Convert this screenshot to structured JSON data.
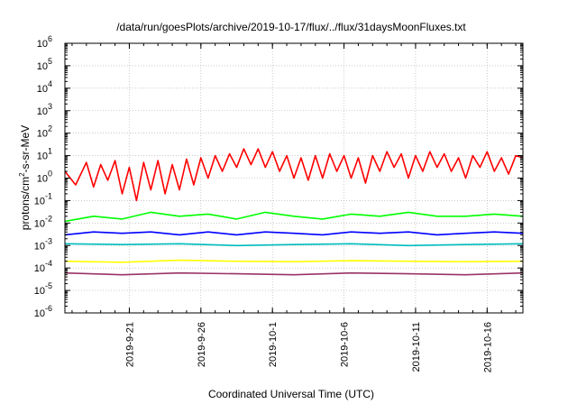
{
  "chart_data": {
    "type": "line",
    "title": "/data/run/goesPlots/archive/2019-10-17/flux/../flux/31daysMoonFluxes.txt",
    "xlabel": "Coordinated Universal Time (UTC)",
    "ylabel_parts": {
      "base": "protons/cm",
      "sup": "2",
      "rest": "-s-sr-MeV"
    },
    "yscale": "log",
    "ylim": [
      1e-06,
      1000000.0
    ],
    "xlim": [
      "2019-09-16T12:00",
      "2019-10-18T12:00"
    ],
    "grid": true,
    "x_ticks": [
      {
        "date": "2019-09-21",
        "label": "2019-9-21"
      },
      {
        "date": "2019-09-26",
        "label": "2019-9-26"
      },
      {
        "date": "2019-10-01",
        "label": "2019-10-1"
      },
      {
        "date": "2019-10-06",
        "label": "2019-10-6"
      },
      {
        "date": "2019-10-11",
        "label": "2019-10-11"
      },
      {
        "date": "2019-10-16",
        "label": "2019-10-16"
      }
    ],
    "y_ticks": [
      {
        "value": 1e-06,
        "base": "10",
        "exp": "-6"
      },
      {
        "value": 1e-05,
        "base": "10",
        "exp": "-5"
      },
      {
        "value": 0.0001,
        "base": "10",
        "exp": "-4"
      },
      {
        "value": 0.001,
        "base": "10",
        "exp": "-3"
      },
      {
        "value": 0.01,
        "base": "10",
        "exp": "-2"
      },
      {
        "value": 0.1,
        "base": "10",
        "exp": "-1"
      },
      {
        "value": 1,
        "base": "10",
        "exp": "0"
      },
      {
        "value": 10,
        "base": "10",
        "exp": "1"
      },
      {
        "value": 100,
        "base": "10",
        "exp": "2"
      },
      {
        "value": 1000,
        "base": "10",
        "exp": "3"
      },
      {
        "value": 10000,
        "base": "10",
        "exp": "4"
      },
      {
        "value": 100000,
        "base": "10",
        "exp": "5"
      },
      {
        "value": 1000000,
        "base": "10",
        "exp": "6"
      }
    ],
    "series": [
      {
        "color": "#ff0000",
        "x": [
          "2019-09-16T12",
          "2019-09-17T06",
          "2019-09-18T00",
          "2019-09-18T12",
          "2019-09-19T00",
          "2019-09-19T12",
          "2019-09-20T00",
          "2019-09-20T12",
          "2019-09-21T00",
          "2019-09-21T12",
          "2019-09-22T00",
          "2019-09-22T12",
          "2019-09-23T00",
          "2019-09-23T12",
          "2019-09-24T00",
          "2019-09-24T12",
          "2019-09-25T00",
          "2019-09-25T12",
          "2019-09-26T00",
          "2019-09-26T12",
          "2019-09-27T00",
          "2019-09-27T12",
          "2019-09-28T00",
          "2019-09-28T12",
          "2019-09-29T00",
          "2019-09-29T12",
          "2019-09-30T00",
          "2019-09-30T12",
          "2019-10-01T00",
          "2019-10-01T12",
          "2019-10-02T00",
          "2019-10-02T12",
          "2019-10-03T00",
          "2019-10-03T12",
          "2019-10-04T00",
          "2019-10-04T12",
          "2019-10-05T00",
          "2019-10-05T12",
          "2019-10-06T00",
          "2019-10-06T12",
          "2019-10-07T00",
          "2019-10-07T12",
          "2019-10-08T00",
          "2019-10-08T12",
          "2019-10-09T00",
          "2019-10-09T12",
          "2019-10-10T00",
          "2019-10-10T12",
          "2019-10-11T00",
          "2019-10-11T12",
          "2019-10-12T00",
          "2019-10-12T12",
          "2019-10-13T00",
          "2019-10-13T12",
          "2019-10-14T00",
          "2019-10-14T12",
          "2019-10-15T00",
          "2019-10-15T12",
          "2019-10-16T00",
          "2019-10-16T12",
          "2019-10-17T00",
          "2019-10-17T12",
          "2019-10-18T00",
          "2019-10-18T12"
        ],
        "y": [
          2,
          0.5,
          5,
          0.4,
          4,
          0.8,
          6,
          0.2,
          3,
          0.1,
          5,
          0.3,
          6,
          0.2,
          4,
          0.3,
          7,
          0.5,
          8,
          1,
          10,
          2,
          12,
          3,
          20,
          4,
          20,
          3,
          15,
          2,
          10,
          1,
          8,
          0.8,
          10,
          1,
          12,
          2,
          10,
          1,
          8,
          0.6,
          10,
          2,
          15,
          3,
          12,
          1,
          10,
          2,
          15,
          3,
          12,
          2,
          8,
          1,
          10,
          3,
          15,
          2,
          8,
          1.5,
          10,
          8
        ]
      },
      {
        "color": "#00ff00",
        "x": [
          "2019-09-16T12",
          "2019-09-18T12",
          "2019-09-20T12",
          "2019-09-22T12",
          "2019-09-24T12",
          "2019-09-26T12",
          "2019-09-28T12",
          "2019-09-30T12",
          "2019-10-02T12",
          "2019-10-04T12",
          "2019-10-06T12",
          "2019-10-08T12",
          "2019-10-10T12",
          "2019-10-12T12",
          "2019-10-14T12",
          "2019-10-16T12",
          "2019-10-18T12"
        ],
        "y": [
          0.012,
          0.02,
          0.015,
          0.03,
          0.02,
          0.025,
          0.015,
          0.03,
          0.02,
          0.015,
          0.025,
          0.02,
          0.03,
          0.02,
          0.02,
          0.025,
          0.02
        ]
      },
      {
        "color": "#0000ff",
        "x": [
          "2019-09-16T12",
          "2019-09-18T12",
          "2019-09-20T12",
          "2019-09-22T12",
          "2019-09-24T12",
          "2019-09-26T12",
          "2019-09-28T12",
          "2019-09-30T12",
          "2019-10-02T12",
          "2019-10-04T12",
          "2019-10-06T12",
          "2019-10-08T12",
          "2019-10-10T12",
          "2019-10-12T12",
          "2019-10-14T12",
          "2019-10-16T12",
          "2019-10-18T12"
        ],
        "y": [
          0.003,
          0.004,
          0.0035,
          0.004,
          0.003,
          0.004,
          0.003,
          0.004,
          0.0035,
          0.003,
          0.004,
          0.0035,
          0.004,
          0.003,
          0.0035,
          0.004,
          0.0035
        ]
      },
      {
        "color": "#00bbbb",
        "x": [
          "2019-09-16T12",
          "2019-09-20T12",
          "2019-09-24T12",
          "2019-09-28T12",
          "2019-10-02T12",
          "2019-10-06T12",
          "2019-10-10T12",
          "2019-10-14T12",
          "2019-10-18T12"
        ],
        "y": [
          0.0012,
          0.0011,
          0.0012,
          0.001,
          0.0011,
          0.0012,
          0.001,
          0.0011,
          0.0012
        ]
      },
      {
        "color": "#ffff00",
        "x": [
          "2019-09-16T12",
          "2019-09-20T12",
          "2019-09-24T12",
          "2019-09-28T12",
          "2019-10-02T12",
          "2019-10-06T12",
          "2019-10-10T12",
          "2019-10-14T12",
          "2019-10-18T12"
        ],
        "y": [
          0.0002,
          0.00018,
          0.00022,
          0.0002,
          0.00019,
          0.00021,
          0.0002,
          0.00019,
          0.0002
        ]
      },
      {
        "color": "#993366",
        "x": [
          "2019-09-16T12",
          "2019-09-20T12",
          "2019-09-24T12",
          "2019-09-28T12",
          "2019-10-02T12",
          "2019-10-06T12",
          "2019-10-10T12",
          "2019-10-14T12",
          "2019-10-18T12"
        ],
        "y": [
          6e-05,
          5e-05,
          6e-05,
          5.5e-05,
          5e-05,
          6e-05,
          5.5e-05,
          5e-05,
          6e-05
        ]
      }
    ]
  }
}
